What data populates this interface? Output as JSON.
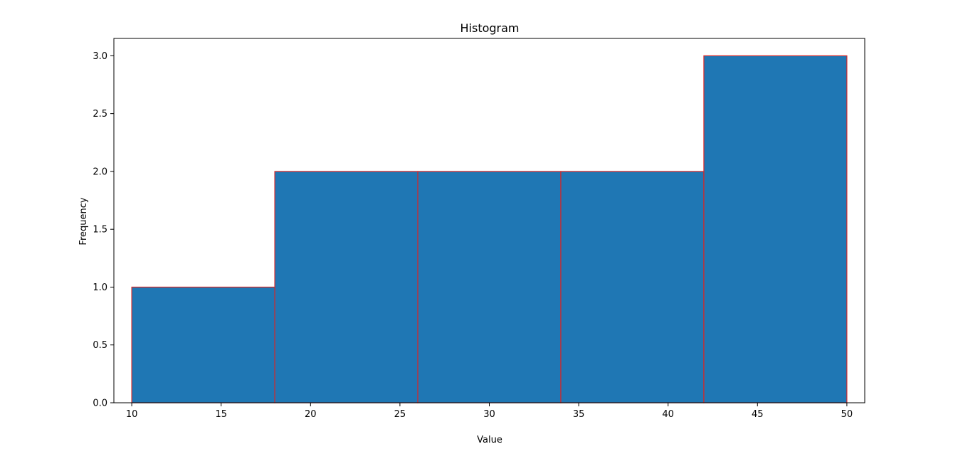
{
  "chart_data": {
    "type": "histogram",
    "title": "Histogram",
    "xlabel": "Value",
    "ylabel": "Frequency",
    "bins": [
      {
        "start": 10,
        "end": 18,
        "count": 1
      },
      {
        "start": 18,
        "end": 26,
        "count": 2
      },
      {
        "start": 26,
        "end": 34,
        "count": 2
      },
      {
        "start": 34,
        "end": 42,
        "count": 2
      },
      {
        "start": 42,
        "end": 50,
        "count": 3
      }
    ],
    "xlim": [
      9,
      51
    ],
    "ylim": [
      0,
      3.15
    ],
    "xticks": [
      10,
      15,
      20,
      25,
      30,
      35,
      40,
      45,
      50
    ],
    "yticks": [
      "0.0",
      "0.5",
      "1.0",
      "1.5",
      "2.0",
      "2.5",
      "3.0"
    ],
    "grid": false,
    "bar_color": "#1f77b4",
    "edge_color": "#d62728"
  }
}
